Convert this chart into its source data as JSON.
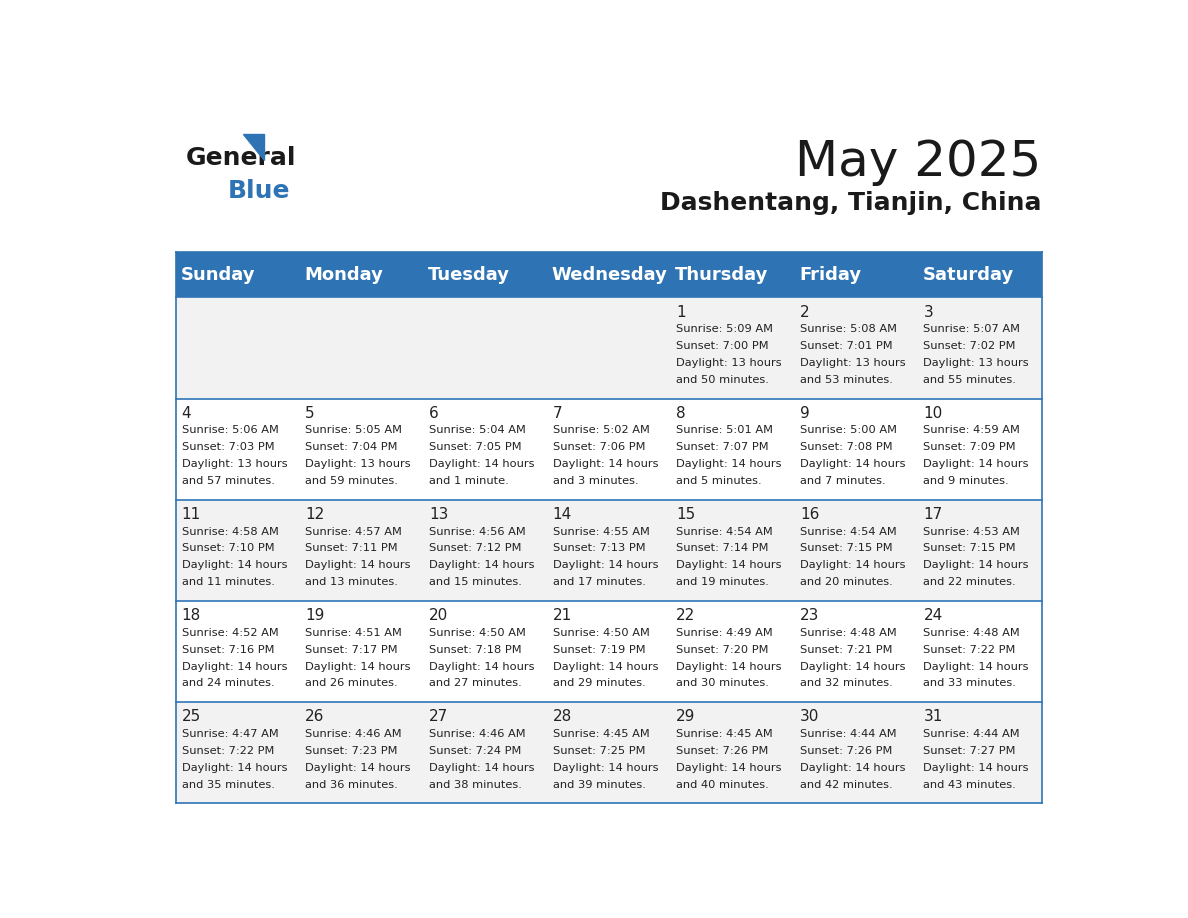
{
  "title": "May 2025",
  "subtitle": "Dashentang, Tianjin, China",
  "header_bg_color": "#2e74b5",
  "header_text_color": "#ffffff",
  "day_names": [
    "Sunday",
    "Monday",
    "Tuesday",
    "Wednesday",
    "Thursday",
    "Friday",
    "Saturday"
  ],
  "alt_row_color": "#f2f2f2",
  "white_color": "#ffffff",
  "border_color": "#2e74b5",
  "text_color": "#222222",
  "title_color": "#1a1a1a",
  "days": [
    {
      "day": 1,
      "col": 4,
      "row": 0,
      "sunrise": "5:09 AM",
      "sunset": "7:00 PM",
      "daylight_hours": 13,
      "daylight_minutes": 50
    },
    {
      "day": 2,
      "col": 5,
      "row": 0,
      "sunrise": "5:08 AM",
      "sunset": "7:01 PM",
      "daylight_hours": 13,
      "daylight_minutes": 53
    },
    {
      "day": 3,
      "col": 6,
      "row": 0,
      "sunrise": "5:07 AM",
      "sunset": "7:02 PM",
      "daylight_hours": 13,
      "daylight_minutes": 55
    },
    {
      "day": 4,
      "col": 0,
      "row": 1,
      "sunrise": "5:06 AM",
      "sunset": "7:03 PM",
      "daylight_hours": 13,
      "daylight_minutes": 57
    },
    {
      "day": 5,
      "col": 1,
      "row": 1,
      "sunrise": "5:05 AM",
      "sunset": "7:04 PM",
      "daylight_hours": 13,
      "daylight_minutes": 59
    },
    {
      "day": 6,
      "col": 2,
      "row": 1,
      "sunrise": "5:04 AM",
      "sunset": "7:05 PM",
      "daylight_hours": 14,
      "daylight_minutes": 1
    },
    {
      "day": 7,
      "col": 3,
      "row": 1,
      "sunrise": "5:02 AM",
      "sunset": "7:06 PM",
      "daylight_hours": 14,
      "daylight_minutes": 3
    },
    {
      "day": 8,
      "col": 4,
      "row": 1,
      "sunrise": "5:01 AM",
      "sunset": "7:07 PM",
      "daylight_hours": 14,
      "daylight_minutes": 5
    },
    {
      "day": 9,
      "col": 5,
      "row": 1,
      "sunrise": "5:00 AM",
      "sunset": "7:08 PM",
      "daylight_hours": 14,
      "daylight_minutes": 7
    },
    {
      "day": 10,
      "col": 6,
      "row": 1,
      "sunrise": "4:59 AM",
      "sunset": "7:09 PM",
      "daylight_hours": 14,
      "daylight_minutes": 9
    },
    {
      "day": 11,
      "col": 0,
      "row": 2,
      "sunrise": "4:58 AM",
      "sunset": "7:10 PM",
      "daylight_hours": 14,
      "daylight_minutes": 11
    },
    {
      "day": 12,
      "col": 1,
      "row": 2,
      "sunrise": "4:57 AM",
      "sunset": "7:11 PM",
      "daylight_hours": 14,
      "daylight_minutes": 13
    },
    {
      "day": 13,
      "col": 2,
      "row": 2,
      "sunrise": "4:56 AM",
      "sunset": "7:12 PM",
      "daylight_hours": 14,
      "daylight_minutes": 15
    },
    {
      "day": 14,
      "col": 3,
      "row": 2,
      "sunrise": "4:55 AM",
      "sunset": "7:13 PM",
      "daylight_hours": 14,
      "daylight_minutes": 17
    },
    {
      "day": 15,
      "col": 4,
      "row": 2,
      "sunrise": "4:54 AM",
      "sunset": "7:14 PM",
      "daylight_hours": 14,
      "daylight_minutes": 19
    },
    {
      "day": 16,
      "col": 5,
      "row": 2,
      "sunrise": "4:54 AM",
      "sunset": "7:15 PM",
      "daylight_hours": 14,
      "daylight_minutes": 20
    },
    {
      "day": 17,
      "col": 6,
      "row": 2,
      "sunrise": "4:53 AM",
      "sunset": "7:15 PM",
      "daylight_hours": 14,
      "daylight_minutes": 22
    },
    {
      "day": 18,
      "col": 0,
      "row": 3,
      "sunrise": "4:52 AM",
      "sunset": "7:16 PM",
      "daylight_hours": 14,
      "daylight_minutes": 24
    },
    {
      "day": 19,
      "col": 1,
      "row": 3,
      "sunrise": "4:51 AM",
      "sunset": "7:17 PM",
      "daylight_hours": 14,
      "daylight_minutes": 26
    },
    {
      "day": 20,
      "col": 2,
      "row": 3,
      "sunrise": "4:50 AM",
      "sunset": "7:18 PM",
      "daylight_hours": 14,
      "daylight_minutes": 27
    },
    {
      "day": 21,
      "col": 3,
      "row": 3,
      "sunrise": "4:50 AM",
      "sunset": "7:19 PM",
      "daylight_hours": 14,
      "daylight_minutes": 29
    },
    {
      "day": 22,
      "col": 4,
      "row": 3,
      "sunrise": "4:49 AM",
      "sunset": "7:20 PM",
      "daylight_hours": 14,
      "daylight_minutes": 30
    },
    {
      "day": 23,
      "col": 5,
      "row": 3,
      "sunrise": "4:48 AM",
      "sunset": "7:21 PM",
      "daylight_hours": 14,
      "daylight_minutes": 32
    },
    {
      "day": 24,
      "col": 6,
      "row": 3,
      "sunrise": "4:48 AM",
      "sunset": "7:22 PM",
      "daylight_hours": 14,
      "daylight_minutes": 33
    },
    {
      "day": 25,
      "col": 0,
      "row": 4,
      "sunrise": "4:47 AM",
      "sunset": "7:22 PM",
      "daylight_hours": 14,
      "daylight_minutes": 35
    },
    {
      "day": 26,
      "col": 1,
      "row": 4,
      "sunrise": "4:46 AM",
      "sunset": "7:23 PM",
      "daylight_hours": 14,
      "daylight_minutes": 36
    },
    {
      "day": 27,
      "col": 2,
      "row": 4,
      "sunrise": "4:46 AM",
      "sunset": "7:24 PM",
      "daylight_hours": 14,
      "daylight_minutes": 38
    },
    {
      "day": 28,
      "col": 3,
      "row": 4,
      "sunrise": "4:45 AM",
      "sunset": "7:25 PM",
      "daylight_hours": 14,
      "daylight_minutes": 39
    },
    {
      "day": 29,
      "col": 4,
      "row": 4,
      "sunrise": "4:45 AM",
      "sunset": "7:26 PM",
      "daylight_hours": 14,
      "daylight_minutes": 40
    },
    {
      "day": 30,
      "col": 5,
      "row": 4,
      "sunrise": "4:44 AM",
      "sunset": "7:26 PM",
      "daylight_hours": 14,
      "daylight_minutes": 42
    },
    {
      "day": 31,
      "col": 6,
      "row": 4,
      "sunrise": "4:44 AM",
      "sunset": "7:27 PM",
      "daylight_hours": 14,
      "daylight_minutes": 43
    }
  ]
}
